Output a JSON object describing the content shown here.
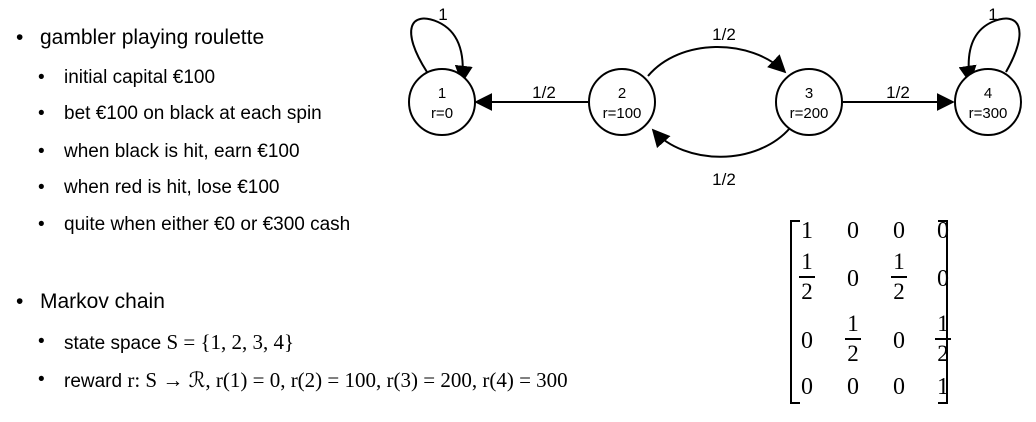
{
  "bullets": {
    "gambler": "gambler playing roulette",
    "sub": [
      "initial capital €100",
      "bet €100 on black at each spin",
      "when black is hit, earn €100",
      "when red is hit, lose €100",
      "quite when either €0 or €300 cash"
    ],
    "markov": "Markov chain",
    "state_space_prefix": "state space ",
    "state_space_math": "S = {1, 2, 3, 4}",
    "reward_prefix": "reward ",
    "reward_math": "r: S → ℛ, r(1) = 0, r(2) = 100, r(3) = 200, r(4) = 300"
  },
  "diagram": {
    "states": [
      {
        "id": "1",
        "reward": "r=0"
      },
      {
        "id": "2",
        "reward": "r=100"
      },
      {
        "id": "3",
        "reward": "r=200"
      },
      {
        "id": "4",
        "reward": "r=300"
      }
    ],
    "edges": [
      {
        "from": "1",
        "to": "1",
        "label": "1"
      },
      {
        "from": "2",
        "to": "1",
        "label": "1/2"
      },
      {
        "from": "2",
        "to": "3",
        "label": "1/2"
      },
      {
        "from": "3",
        "to": "2",
        "label": "1/2"
      },
      {
        "from": "3",
        "to": "4",
        "label": "1/2"
      },
      {
        "from": "4",
        "to": "4",
        "label": "1"
      }
    ]
  },
  "matrix": {
    "rows": [
      [
        "1",
        "0",
        "0",
        "0"
      ],
      [
        "1/2",
        "0",
        "1/2",
        "0"
      ],
      [
        "0",
        "1/2",
        "0",
        "1/2"
      ],
      [
        "0",
        "0",
        "0",
        "1"
      ]
    ]
  }
}
